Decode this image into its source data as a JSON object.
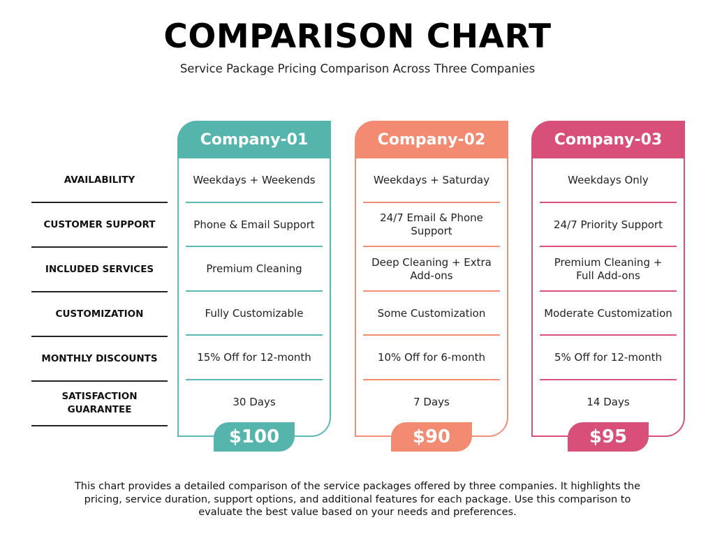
{
  "header": {
    "title": "COMPARISON CHART",
    "subtitle": "Service Package Pricing Comparison Across Three Companies"
  },
  "rows": [
    "AVAILABILITY",
    "CUSTOMER SUPPORT",
    "INCLUDED SERVICES",
    "CUSTOMIZATION",
    "MONTHLY DISCOUNTS",
    [
      "SATISFACTION",
      "GUARANTEE"
    ]
  ],
  "companies": [
    {
      "name": "Company-01",
      "color": "#55b5ad",
      "price": "$100",
      "cells": [
        "Weekdays + Weekends",
        "Phone & Email Support",
        "Premium Cleaning",
        "Fully Customizable",
        "15% Off for 12-month",
        "30 Days"
      ]
    },
    {
      "name": "Company-02",
      "color": "#f28b72",
      "price": "$90",
      "cells": [
        "Weekdays + Saturday",
        [
          "24/7 Email & Phone",
          "Support"
        ],
        [
          "Deep Cleaning + Extra",
          "Add-ons"
        ],
        "Some Customization",
        "10% Off for 6-month",
        "7 Days"
      ]
    },
    {
      "name": "Company-03",
      "color": "#d84f79",
      "price": "$95",
      "cells": [
        "Weekdays Only",
        "24/7 Priority Support",
        [
          "Premium Cleaning +",
          "Full Add-ons"
        ],
        "Moderate Customization",
        "5% Off for 12-month",
        "14 Days"
      ]
    }
  ],
  "footer": {
    "lines": [
      "This chart provides a detailed comparison of the service packages offered by three companies. It highlights the",
      "pricing, service duration, support options, and additional features for each package. Use this comparison to",
      "evaluate the best value based on your needs and preferences."
    ]
  }
}
